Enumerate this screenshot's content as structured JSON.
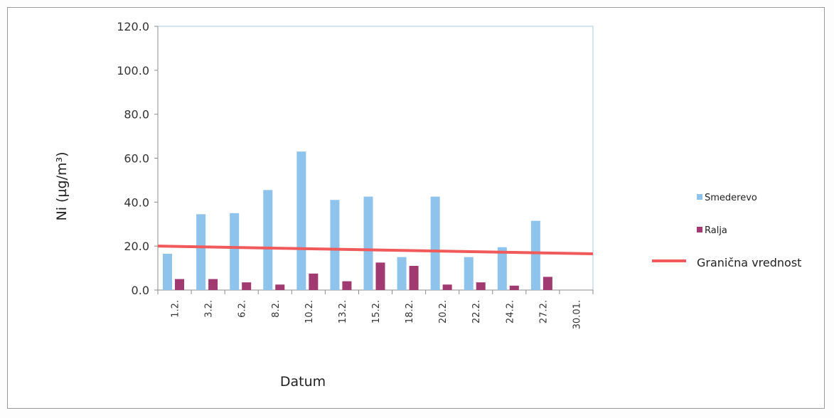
{
  "chart_data": {
    "type": "bar",
    "title": "",
    "xlabel": "Datum",
    "ylabel": "Ni (µg/m³)",
    "ylim": [
      0,
      120
    ],
    "yticks": [
      "0.0",
      "20.0",
      "40.0",
      "60.0",
      "80.0",
      "100.0",
      "120.0"
    ],
    "categories": [
      "1.2.",
      "3.2.",
      "6.2.",
      "8.2.",
      "10.2.",
      "13.2.",
      "15.2.",
      "18.2.",
      "20.2.",
      "22.2.",
      "24.2.",
      "27.2.",
      "30.01."
    ],
    "series": [
      {
        "name": "Smederevo",
        "color": "#8ec4ec",
        "values": [
          16.5,
          34.5,
          35,
          45.5,
          63,
          41,
          42.5,
          15,
          42.5,
          15,
          19.5,
          31.5,
          null
        ]
      },
      {
        "name": "Ralja",
        "color": "#a13a70",
        "values": [
          5,
          5,
          3.5,
          2.5,
          7.5,
          4,
          12.5,
          11,
          2.5,
          3.5,
          2,
          6,
          null
        ]
      }
    ],
    "reference_line": {
      "name": "Granična vrednost",
      "color": "#f05a5a",
      "value_start": 20,
      "value_end": 16.5
    },
    "legend_position": "right",
    "grid": false
  }
}
